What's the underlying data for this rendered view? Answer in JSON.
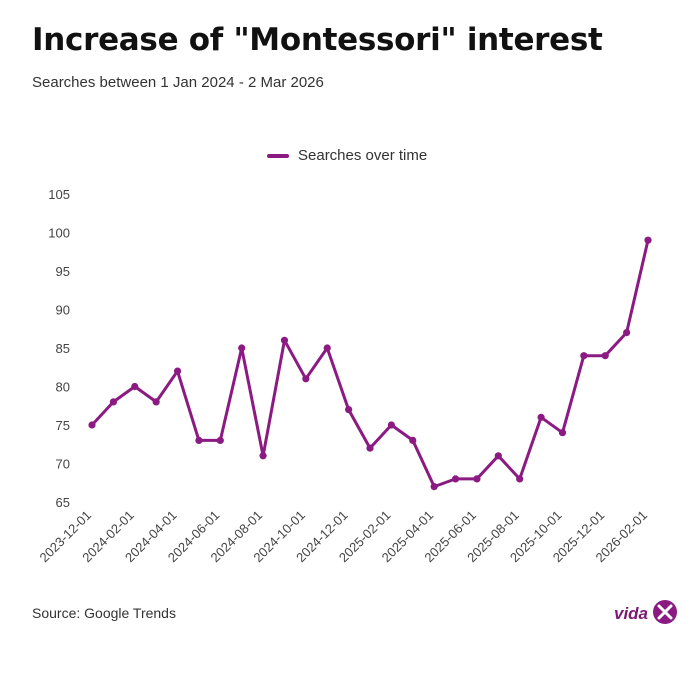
{
  "header": {
    "title": "Increase of \"Montessori\" interest",
    "subtitle": "Searches between 1 Jan 2024 - 2 Mar 2026"
  },
  "footer": {
    "source": "Source: Google Trends",
    "logo_text": "vida"
  },
  "colors": {
    "series": "#8b1a82",
    "tick_text": "#444444"
  },
  "chart_data": {
    "type": "line",
    "title": "Increase of \"Montessori\" interest",
    "subtitle": "Searches between 1 Jan 2024 - 2 Mar 2026",
    "xlabel": "",
    "ylabel": "",
    "ylim": [
      65,
      105
    ],
    "yticks": [
      65,
      70,
      75,
      80,
      85,
      90,
      95,
      100,
      105
    ],
    "grid": false,
    "legend_position": "top-center",
    "x": [
      "2023-12-01",
      "2024-01-01",
      "2024-02-01",
      "2024-03-01",
      "2024-04-01",
      "2024-05-01",
      "2024-06-01",
      "2024-07-01",
      "2024-08-01",
      "2024-09-01",
      "2024-10-01",
      "2024-11-01",
      "2024-12-01",
      "2025-01-01",
      "2025-02-01",
      "2025-03-01",
      "2025-04-01",
      "2025-05-01",
      "2025-06-01",
      "2025-07-01",
      "2025-08-01",
      "2025-09-01",
      "2025-10-01",
      "2025-11-01",
      "2025-12-01",
      "2026-01-01",
      "2026-02-01"
    ],
    "xticks": [
      "2023-12-01",
      "2024-02-01",
      "2024-04-01",
      "2024-06-01",
      "2024-08-01",
      "2024-10-01",
      "2024-12-01",
      "2025-02-01",
      "2025-04-01",
      "2025-06-01",
      "2025-08-01",
      "2025-10-01",
      "2025-12-01",
      "2026-02-01"
    ],
    "series": [
      {
        "name": "Searches over time",
        "values": [
          75,
          78,
          80,
          78,
          82,
          73,
          73,
          85,
          71,
          86,
          81,
          85,
          77,
          72,
          75,
          73,
          67,
          68,
          68,
          71,
          68,
          76,
          74,
          84,
          84,
          87,
          99
        ]
      }
    ]
  }
}
